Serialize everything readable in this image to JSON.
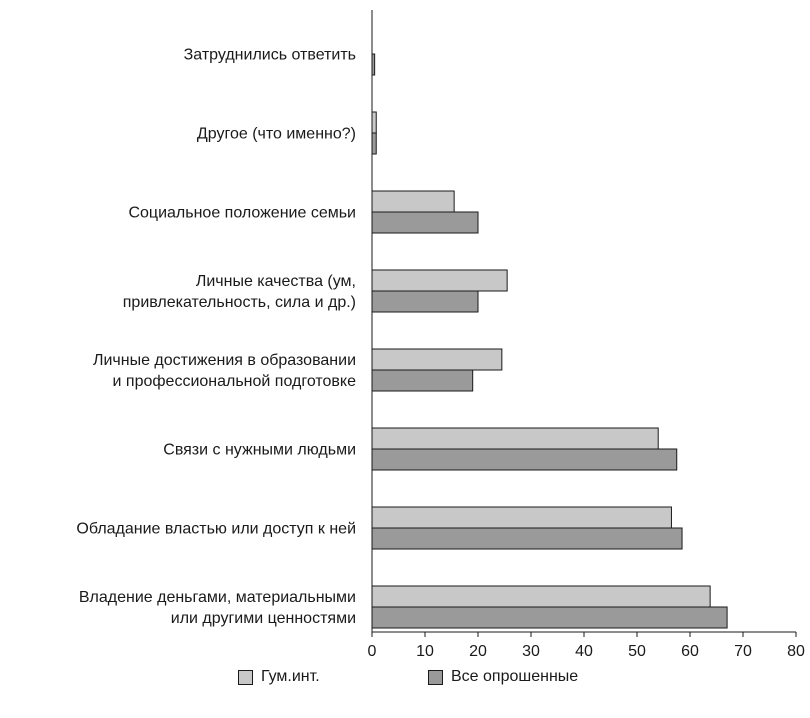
{
  "chart_data": {
    "type": "bar",
    "orientation": "horizontal",
    "categories": [
      [
        "Затруднились ответить"
      ],
      [
        "Другое (что именно?)"
      ],
      [
        "Социальное положение семьи"
      ],
      [
        "Личные качества (ум,",
        "привлекательность, сила и др.)"
      ],
      [
        "Личные достижения в образовании",
        "и профессиональной подготовке"
      ],
      [
        "Связи с нужными людьми"
      ],
      [
        "Обладание властью или доступ к ней"
      ],
      [
        "Владение деньгами, материальными",
        "или другими ценностями"
      ]
    ],
    "series": [
      {
        "name": "Гум.инт.",
        "color": "#c8c8c8",
        "values": [
          0,
          0.8,
          15.5,
          25.5,
          24.5,
          54.0,
          56.5,
          63.8
        ]
      },
      {
        "name": "Все опрошенные",
        "color": "#9a9a9a",
        "values": [
          0.5,
          0.8,
          20.0,
          20.0,
          19.0,
          57.5,
          58.5,
          67.0
        ]
      }
    ],
    "xlim": [
      0,
      80
    ],
    "xticks": [
      0,
      10,
      20,
      30,
      40,
      50,
      60,
      70,
      80
    ],
    "grid": false,
    "legend_position": "bottom"
  },
  "legend": {
    "item1": "Гум.инт.",
    "item2": "Все опрошенные"
  }
}
